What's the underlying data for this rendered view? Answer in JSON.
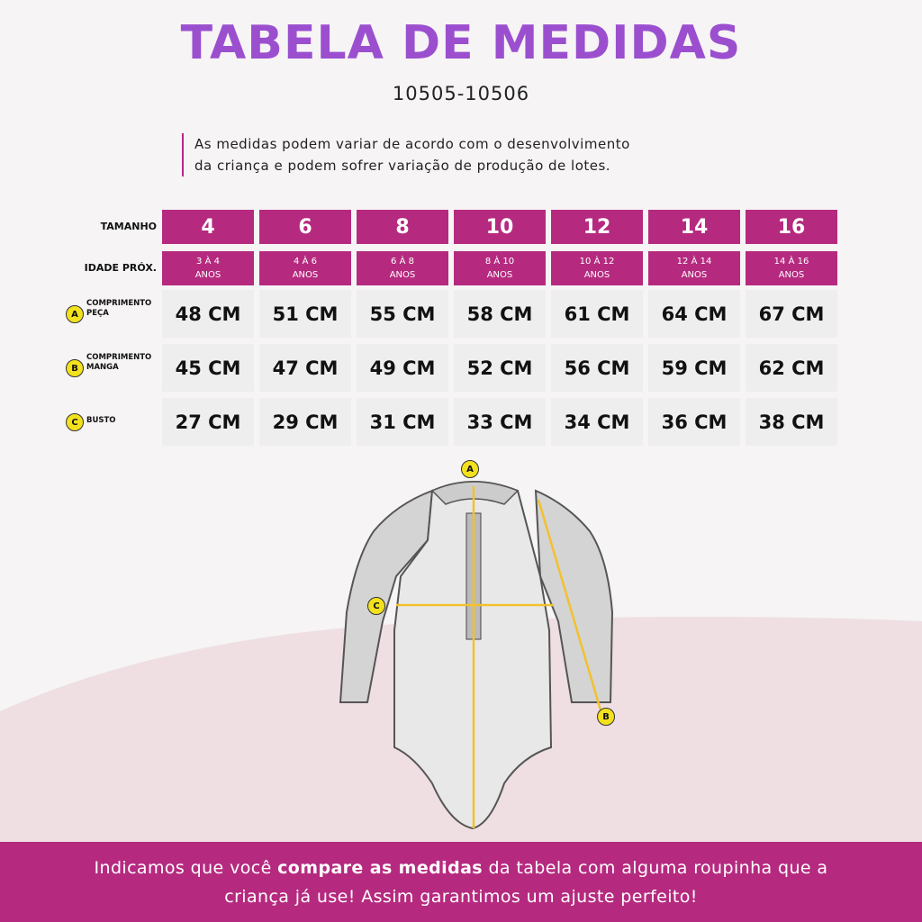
{
  "header": {
    "title": "TABELA DE MEDIDAS",
    "code": "10505-10506"
  },
  "note": [
    "As medidas podem variar de acordo com o desenvolvimento",
    "da criança e podem sofrer variação de produção de lotes."
  ],
  "table": {
    "size_label": "TAMANHO",
    "age_label": "IDADE PRÓX.",
    "sizes": [
      "4",
      "6",
      "8",
      "10",
      "12",
      "14",
      "16"
    ],
    "ages": [
      [
        "3 À 4",
        "ANOS"
      ],
      [
        "4 À 6",
        "ANOS"
      ],
      [
        "6 À 8",
        "ANOS"
      ],
      [
        "8 À 10",
        "ANOS"
      ],
      [
        "10 À 12",
        "ANOS"
      ],
      [
        "12 À 14",
        "ANOS"
      ],
      [
        "14 À 16",
        "ANOS"
      ]
    ],
    "rows": [
      {
        "marker": "A",
        "label": [
          "COMPRIMENTO",
          "PEÇA"
        ],
        "values": [
          "48 CM",
          "51 CM",
          "55 CM",
          "58 CM",
          "61 CM",
          "64 CM",
          "67 CM"
        ]
      },
      {
        "marker": "B",
        "label": [
          "COMPRIMENTO",
          "MANGA"
        ],
        "values": [
          "45 CM",
          "47 CM",
          "49 CM",
          "52 CM",
          "56 CM",
          "59 CM",
          "62 CM"
        ]
      },
      {
        "marker": "C",
        "label": [
          "BUSTO"
        ],
        "values": [
          "27 CM",
          "29 CM",
          "31 CM",
          "33 CM",
          "34 CM",
          "36 CM",
          "38 CM"
        ]
      }
    ]
  },
  "footer": {
    "line1": [
      "Indicamos que você ",
      "compare as medidas",
      " da tabela com alguma roupinha que a"
    ],
    "line2": "criança já use! Assim garantimos um ajuste perfeito!"
  }
}
